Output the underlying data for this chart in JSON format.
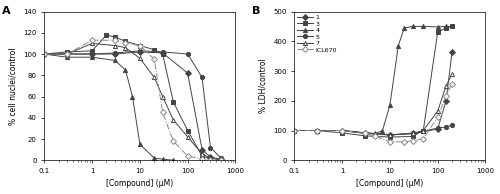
{
  "panel_A": {
    "title": "A",
    "ylabel": "% cell nuclei/control",
    "xlabel": "[Compound] (μM)",
    "ylim": [
      0,
      140
    ],
    "yticks": [
      0,
      20,
      40,
      60,
      80,
      100,
      120,
      140
    ],
    "xlim": [
      0.1,
      1000
    ],
    "xticks": [
      0.1,
      1,
      10,
      100,
      1000
    ],
    "xticklabels": [
      "0.1",
      "1",
      "10",
      "100",
      "1000"
    ],
    "series": {
      "comp1": {
        "label": "1",
        "marker": "D",
        "fillstyle": "full",
        "color": "#444444",
        "linestyle": "-",
        "x": [
          0.1,
          0.3,
          1,
          3,
          10,
          30,
          100,
          200,
          300,
          500
        ],
        "y": [
          100,
          100,
          100,
          100,
          102,
          101,
          82,
          10,
          3,
          1
        ]
      },
      "comp3": {
        "label": "3",
        "marker": "s",
        "fillstyle": "full",
        "color": "#444444",
        "linestyle": "-",
        "x": [
          0.1,
          0.3,
          1,
          2,
          3,
          5,
          10,
          20,
          30,
          50,
          100,
          200,
          300
        ],
        "y": [
          100,
          102,
          103,
          118,
          116,
          112,
          108,
          104,
          100,
          55,
          28,
          4,
          1
        ]
      },
      "comp4": {
        "label": "4",
        "marker": "^",
        "fillstyle": "full",
        "color": "#444444",
        "linestyle": "-",
        "x": [
          0.1,
          0.3,
          1,
          3,
          5,
          7,
          10,
          20,
          30,
          50
        ],
        "y": [
          100,
          97,
          97,
          94,
          85,
          60,
          15,
          2,
          1,
          0
        ]
      },
      "comp5": {
        "label": "5",
        "marker": "o",
        "fillstyle": "full",
        "color": "#444444",
        "linestyle": "-",
        "x": [
          0.1,
          0.3,
          1,
          3,
          10,
          30,
          100,
          200,
          300,
          500
        ],
        "y": [
          100,
          100,
          100,
          101,
          103,
          102,
          100,
          78,
          12,
          2
        ]
      },
      "comp7": {
        "label": "7",
        "marker": "^",
        "fillstyle": "none",
        "color": "#444444",
        "linestyle": "-",
        "x": [
          0.1,
          0.3,
          1,
          3,
          5,
          10,
          20,
          30,
          50,
          100,
          200,
          300,
          500
        ],
        "y": [
          100,
          100,
          110,
          108,
          106,
          96,
          78,
          60,
          38,
          22,
          6,
          2,
          0
        ]
      },
      "ICL670": {
        "label": "ICL670",
        "marker": "D",
        "fillstyle": "none",
        "color": "#888888",
        "linestyle": "-.",
        "x": [
          0.1,
          0.3,
          1,
          3,
          5,
          10,
          20,
          30,
          50,
          100,
          200,
          300,
          500
        ],
        "y": [
          100,
          100,
          113,
          113,
          110,
          108,
          95,
          45,
          18,
          4,
          1,
          0,
          0
        ]
      }
    }
  },
  "panel_B": {
    "title": "B",
    "ylabel": "% LDH/control",
    "xlabel": "[Compound] (μM)",
    "ylim": [
      0,
      500
    ],
    "yticks": [
      0,
      100,
      200,
      300,
      400,
      500
    ],
    "xlim": [
      0.1,
      1000
    ],
    "xticks": [
      0.1,
      1,
      10,
      100,
      1000
    ],
    "xticklabels": [
      "0.1",
      "1",
      "10",
      "100",
      "1000"
    ],
    "series": {
      "comp1": {
        "label": "1",
        "marker": "D",
        "fillstyle": "full",
        "color": "#444444",
        "linestyle": "-",
        "x": [
          0.1,
          0.3,
          1,
          3,
          10,
          30,
          100,
          150,
          200
        ],
        "y": [
          100,
          100,
          100,
          92,
          85,
          90,
          105,
          200,
          365
        ]
      },
      "comp3": {
        "label": "3",
        "marker": "s",
        "fillstyle": "full",
        "color": "#444444",
        "linestyle": "-",
        "x": [
          0.1,
          0.3,
          1,
          3,
          10,
          30,
          50,
          100,
          150,
          200
        ],
        "y": [
          100,
          100,
          92,
          82,
          78,
          80,
          100,
          430,
          445,
          450
        ]
      },
      "comp4": {
        "label": "4",
        "marker": "^",
        "fillstyle": "full",
        "color": "#444444",
        "linestyle": "-",
        "x": [
          0.1,
          0.3,
          1,
          3,
          5,
          7,
          10,
          15,
          20,
          30,
          50,
          100,
          150,
          200
        ],
        "y": [
          100,
          100,
          100,
          92,
          90,
          100,
          185,
          385,
          445,
          450,
          450,
          448,
          450,
          450
        ]
      },
      "comp5": {
        "label": "5",
        "marker": "o",
        "fillstyle": "full",
        "color": "#444444",
        "linestyle": "-",
        "x": [
          0.1,
          0.3,
          1,
          3,
          10,
          30,
          100,
          150,
          200
        ],
        "y": [
          100,
          100,
          100,
          92,
          86,
          90,
          108,
          112,
          118
        ]
      },
      "comp7": {
        "label": "7",
        "marker": "^",
        "fillstyle": "none",
        "color": "#444444",
        "linestyle": "-",
        "x": [
          0.1,
          0.3,
          1,
          3,
          10,
          30,
          50,
          100,
          150,
          200
        ],
        "y": [
          100,
          100,
          100,
          90,
          85,
          90,
          100,
          165,
          250,
          290
        ]
      },
      "ICL670": {
        "label": "ICL670",
        "marker": "D",
        "fillstyle": "none",
        "color": "#888888",
        "linestyle": "-.",
        "x": [
          0.1,
          0.3,
          1,
          3,
          5,
          10,
          20,
          30,
          50,
          100,
          150,
          200
        ],
        "y": [
          100,
          100,
          100,
          90,
          80,
          62,
          62,
          65,
          72,
          145,
          215,
          258
        ]
      }
    }
  },
  "figure_bg": "#ffffff",
  "axes_bg": "#ffffff"
}
